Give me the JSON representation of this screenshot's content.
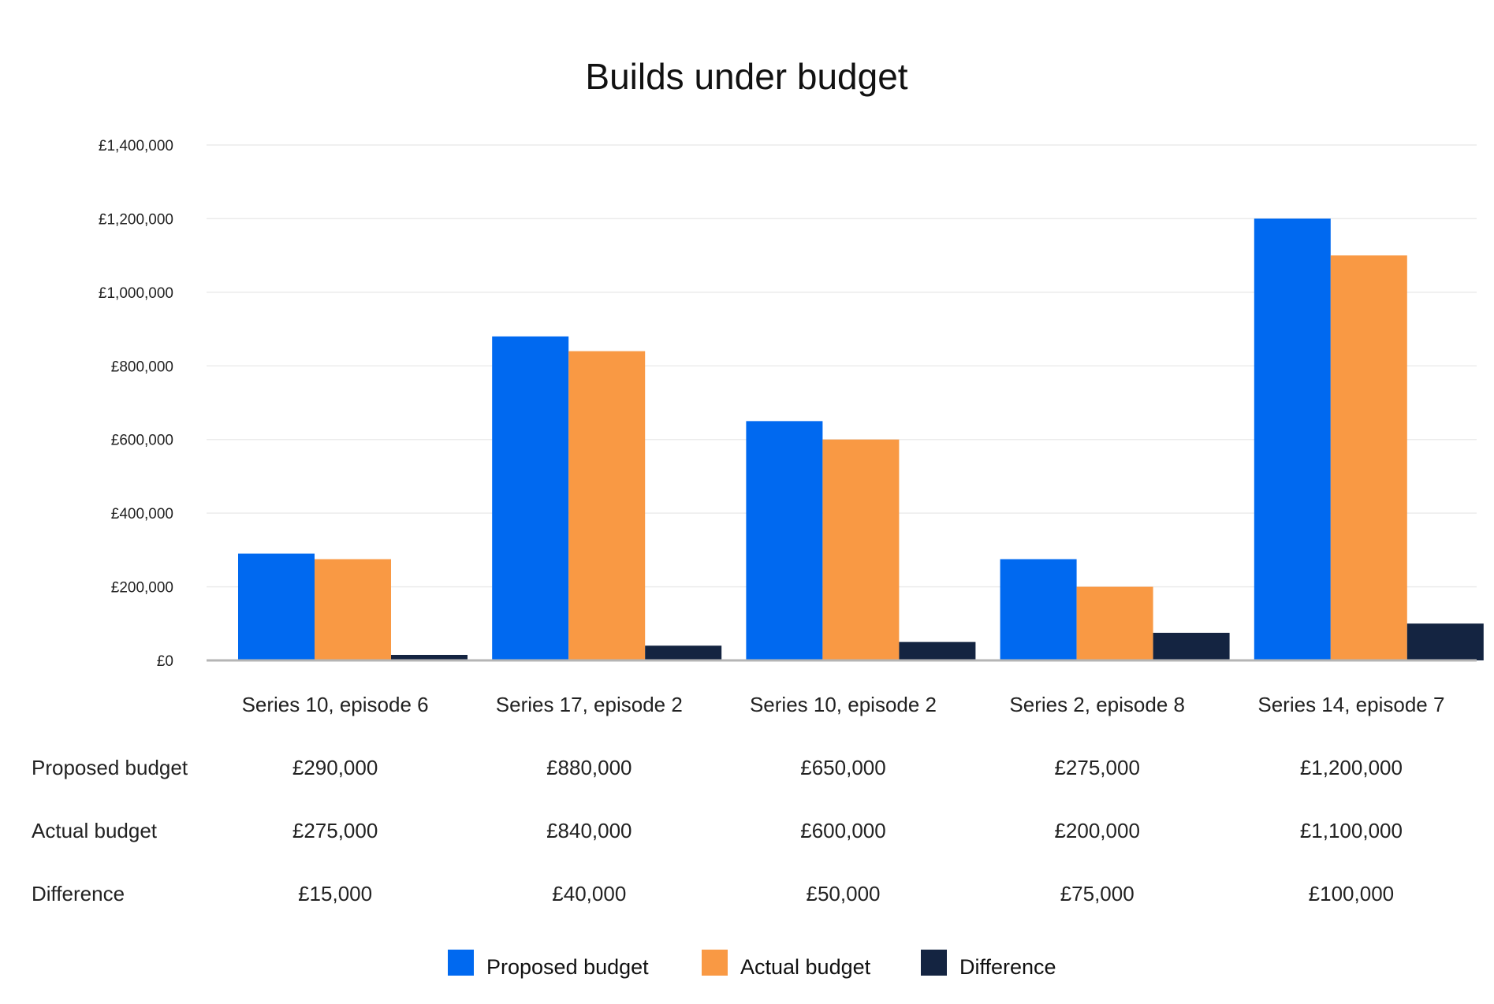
{
  "chart_data": {
    "type": "bar",
    "title": "Builds under budget",
    "xlabel": "",
    "ylabel": "",
    "ylim": [
      0,
      1400000
    ],
    "yticks": [
      0,
      200000,
      400000,
      600000,
      800000,
      1000000,
      1200000,
      1400000
    ],
    "ytick_labels": [
      "£0",
      "£200,000",
      "£400,000",
      "£600,000",
      "£800,000",
      "£1,000,000",
      "£1,200,000",
      "£1,400,000"
    ],
    "grid": true,
    "legend_position": "bottom-center",
    "categories": [
      "Series 10, episode 6",
      "Series 17, episode 2",
      "Series 10, episode 2",
      "Series 2, episode 8",
      "Series 14, episode 7"
    ],
    "series": [
      {
        "name": "Proposed budget",
        "color": "#0069f0",
        "values": [
          290000,
          880000,
          650000,
          275000,
          1200000
        ],
        "labels": [
          "£290,000",
          "£880,000",
          "£650,000",
          "£275,000",
          "£1,200,000"
        ]
      },
      {
        "name": "Actual budget",
        "color": "#f99944",
        "values": [
          275000,
          840000,
          600000,
          200000,
          1100000
        ],
        "labels": [
          "£275,000",
          "£840,000",
          "£600,000",
          "£200,000",
          "£1,100,000"
        ]
      },
      {
        "name": "Difference",
        "color": "#142441",
        "values": [
          15000,
          40000,
          50000,
          75000,
          100000
        ],
        "labels": [
          "£15,000",
          "£40,000",
          "£50,000",
          "£75,000",
          "£100,000"
        ]
      }
    ]
  }
}
